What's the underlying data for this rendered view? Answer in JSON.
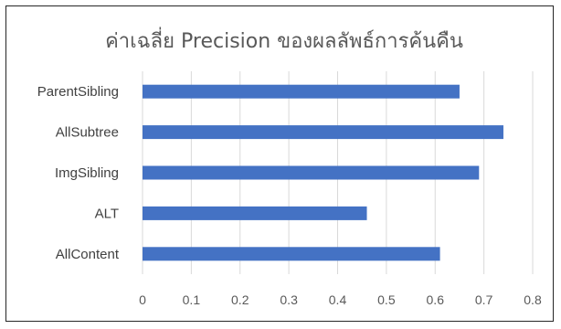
{
  "chart_data": {
    "type": "bar",
    "orientation": "horizontal",
    "title": "ค่าเฉลี่ย Precision ของผลลัพธ์การค้นคืน",
    "categories": [
      "ParentSibling",
      "AllSubtree",
      "ImgSibling",
      "ALT",
      "AllContent"
    ],
    "values": [
      0.65,
      0.74,
      0.69,
      0.46,
      0.61
    ],
    "xlabel": "",
    "ylabel": "",
    "xlim": [
      0,
      0.8
    ],
    "ticks": [
      "0",
      "0.1",
      "0.2",
      "0.3",
      "0.4",
      "0.5",
      "0.6",
      "0.7",
      "0.8"
    ],
    "grid": true,
    "legend": "none",
    "bar_color": "#4472c4"
  }
}
